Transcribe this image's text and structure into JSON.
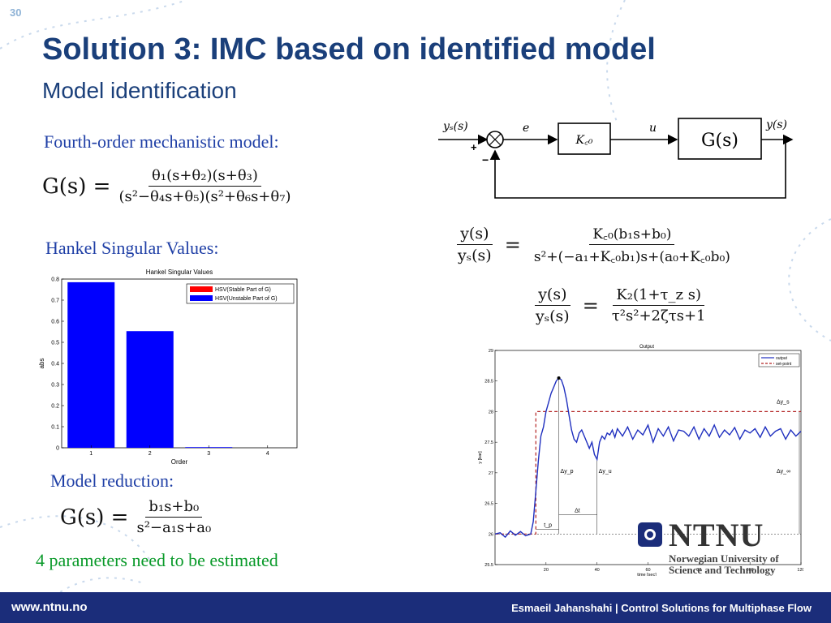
{
  "slide": {
    "number": "30",
    "title": "Solution 3: IMC based on identified model",
    "subtitle": "Model identification"
  },
  "left": {
    "mechanistic_label": "Fourth-order mechanistic model:",
    "hankel_label": "Hankel Singular Values:",
    "reduction_label": "Model reduction:",
    "params_note": "4 parameters need to be estimated",
    "eq_fourth_lhs": "G(s) =",
    "eq_fourth_num": "θ₁(s+θ₂)(s+θ₃)",
    "eq_fourth_den": "(s²−θ₄s+θ₅)(s²+θ₆s+θ₇)",
    "eq_reduced_lhs": "G(s) =",
    "eq_reduced_num": "b₁s+b₀",
    "eq_reduced_den": "s²−a₁s+a₀"
  },
  "right": {
    "eq_closed_num": "y(s)",
    "eq_closed_den": "yₛ(s)",
    "eq_closed_rhs_num": "K꜀₀(b₁s+b₀)",
    "eq_closed_rhs_den": "s²+(−a₁+K꜀₀b₁)s+(a₀+K꜀₀b₀)",
    "eq_second_num": "y(s)",
    "eq_second_den": "yₛ(s)",
    "eq_second_rhs_num": "K₂(1+τ_z s)",
    "eq_second_rhs_den": "τ²s²+2ζτs+1",
    "eq_equals": "="
  },
  "block_diagram": {
    "input": "yₛ(s)",
    "error": "e",
    "controller": "K꜀₀",
    "control": "u",
    "plant": "G(s)",
    "output": "y(s)",
    "plus": "+",
    "minus": "−"
  },
  "hankel_chart": {
    "chart_data": {
      "type": "bar",
      "title": "Hankel Singular Values",
      "xlabel": "Order",
      "ylabel": "abs",
      "categories": [
        "1",
        "2",
        "3",
        "4"
      ],
      "series": [
        {
          "name": "HSV(Stable Part of G)",
          "color": "#ff0000",
          "values": [
            0,
            0,
            0,
            0
          ]
        },
        {
          "name": "HSV(Unstable Part of G)",
          "color": "#0000ff",
          "values": [
            0.785,
            0.553,
            0.003,
            0
          ]
        }
      ],
      "ylim": [
        0,
        0.8
      ],
      "yticks": [
        "0",
        "0.1",
        "0.2",
        "0.3",
        "0.4",
        "0.5",
        "0.6",
        "0.7",
        "0.8"
      ],
      "legend_position": "top-right"
    }
  },
  "output_chart": {
    "chart_data": {
      "type": "line",
      "title": "Output",
      "xlabel": "time [sec]",
      "ylabel": "y [bar]",
      "xlim": [
        0,
        120
      ],
      "ylim": [
        25.5,
        29
      ],
      "xticks": [
        "20",
        "40",
        "60",
        "80",
        "100",
        "120"
      ],
      "yticks": [
        "25.5",
        "26",
        "26.5",
        "27",
        "27.5",
        "28",
        "28.5",
        "29"
      ],
      "series": [
        {
          "name": "output",
          "color": "#1f2fbf",
          "style": "solid",
          "x": [
            0,
            2,
            4,
            6,
            8,
            10,
            12,
            14,
            15,
            16,
            17,
            18,
            19,
            20,
            21,
            22,
            23,
            24,
            25,
            26,
            27,
            28,
            29,
            30,
            31,
            32,
            33,
            34,
            35,
            36,
            37,
            38,
            39,
            40,
            41,
            42,
            43,
            44,
            45,
            46,
            47,
            48,
            50,
            52,
            54,
            56,
            58,
            60,
            62,
            64,
            66,
            68,
            70,
            72,
            74,
            76,
            78,
            80,
            82,
            84,
            86,
            88,
            90,
            92,
            94,
            96,
            98,
            100,
            102,
            104,
            106,
            108,
            110,
            112,
            114,
            116,
            118,
            120
          ],
          "y": [
            26,
            26.02,
            25.95,
            26.05,
            25.98,
            26.04,
            25.97,
            26.0,
            26.2,
            26.7,
            27.2,
            27.6,
            27.75,
            28.0,
            28.15,
            28.3,
            28.4,
            28.5,
            28.55,
            28.52,
            28.4,
            28.2,
            27.95,
            27.7,
            27.55,
            27.5,
            27.65,
            27.7,
            27.6,
            27.5,
            27.4,
            27.5,
            27.3,
            27.22,
            27.5,
            27.6,
            27.55,
            27.65,
            27.62,
            27.7,
            27.58,
            27.72,
            27.6,
            27.75,
            27.55,
            27.7,
            27.62,
            27.78,
            27.5,
            27.72,
            27.6,
            27.75,
            27.52,
            27.7,
            27.68,
            27.6,
            27.75,
            27.55,
            27.72,
            27.6,
            27.78,
            27.58,
            27.7,
            27.62,
            27.74,
            27.55,
            27.7,
            27.65,
            27.72,
            27.58,
            27.75,
            27.6,
            27.68,
            27.72,
            27.55,
            27.7,
            27.6,
            27.68
          ]
        },
        {
          "name": "set-point",
          "color": "#b22222",
          "style": "dashed",
          "x": [
            0,
            16,
            16,
            120
          ],
          "y": [
            26,
            26,
            28,
            28
          ]
        }
      ],
      "annotations": [
        "Δy_s",
        "Δy_p",
        "Δy_u",
        "Δt",
        "t_p",
        "Δy_∞"
      ],
      "legend_position": "top-right"
    }
  },
  "logo": {
    "name": "NTNU",
    "sub1": "Norwegian University of",
    "sub2": "Science and Technology"
  },
  "footer": {
    "url": "www.ntnu.no",
    "right": "Esmaeil Jahanshahi  |  Control Solutions for Multiphase Flow",
    "bg_color": "#1b2d7a"
  },
  "colors": {
    "title": "#1a3f7a",
    "label_blue": "#1f3fa6",
    "note_green": "#0a9a2a"
  }
}
